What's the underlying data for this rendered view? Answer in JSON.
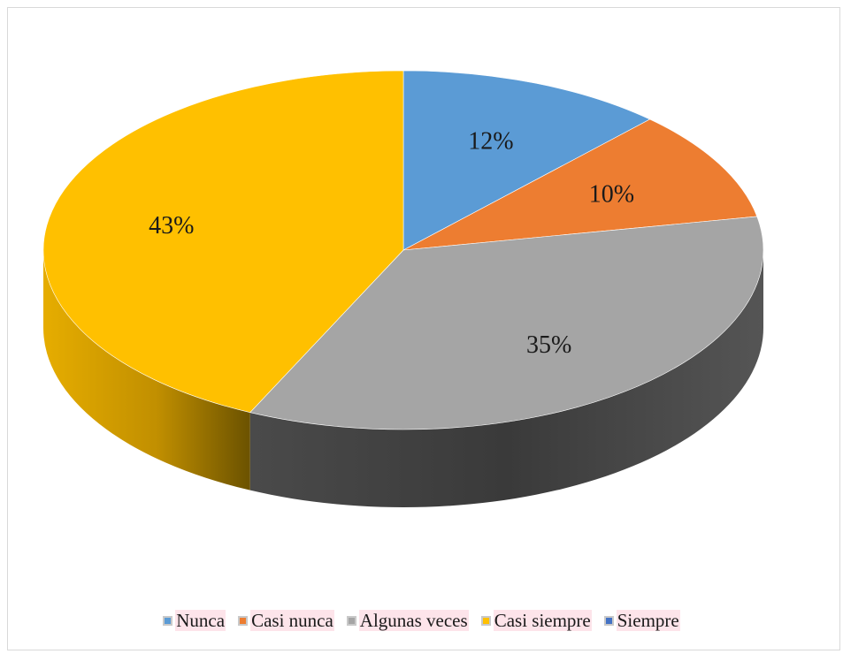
{
  "chart_data": {
    "type": "pie",
    "categories": [
      "Nunca",
      "Casi nunca",
      "Algunas veces",
      "Casi siempre",
      "Siempre"
    ],
    "values": [
      12,
      10,
      35,
      43,
      0
    ],
    "labels": [
      "12%",
      "10%",
      "35%",
      "43%",
      ""
    ],
    "colors": [
      "#5b9bd5",
      "#ed7d31",
      "#a5a5a5",
      "#ffc000",
      "#4472c4"
    ],
    "legend_position": "bottom",
    "title": ""
  }
}
